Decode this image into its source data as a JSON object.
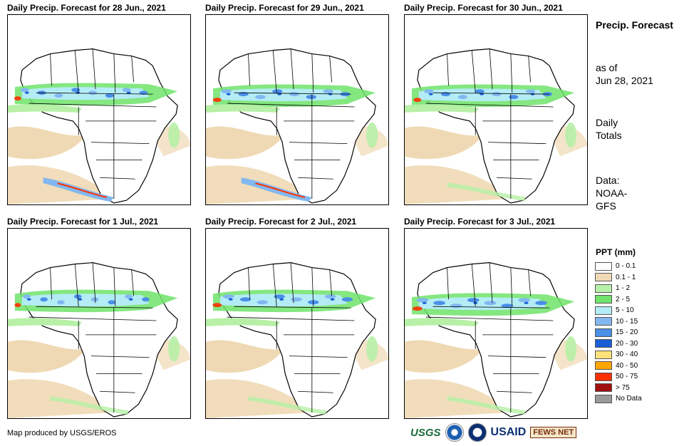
{
  "panels": [
    {
      "title": "Daily Precip. Forecast for 28 Jun., 2021"
    },
    {
      "title": "Daily Precip. Forecast for 29 Jun., 2021"
    },
    {
      "title": "Daily Precip. Forecast for 30 Jun., 2021"
    },
    {
      "title": "Daily Precip. Forecast for 1 Jul., 2021"
    },
    {
      "title": "Daily Precip. Forecast for 2 Jul., 2021"
    },
    {
      "title": "Daily Precip. Forecast for 3 Jul., 2021"
    }
  ],
  "side": {
    "title": "Precip. Forecast",
    "as_of_label": "as of",
    "as_of_date": "Jun 28, 2021",
    "totals_line1": "Daily",
    "totals_line2": "Totals",
    "data_line1": "Data:",
    "data_line2": "NOAA-",
    "data_line3": "GFS"
  },
  "legend": {
    "title": "PPT (mm)",
    "items": [
      {
        "label": "0 - 0.1",
        "color": "#ffffff"
      },
      {
        "label": "0.1 - 1",
        "color": "#efd9b4"
      },
      {
        "label": "1 - 2",
        "color": "#b7f0a6"
      },
      {
        "label": "2 - 5",
        "color": "#6fe36a"
      },
      {
        "label": "5 - 10",
        "color": "#b4ecf5"
      },
      {
        "label": "10 - 15",
        "color": "#82b8ef"
      },
      {
        "label": "15 - 20",
        "color": "#4a8fe8"
      },
      {
        "label": "20 - 30",
        "color": "#1a5fd6"
      },
      {
        "label": "30 - 40",
        "color": "#ffe27a"
      },
      {
        "label": "40 - 50",
        "color": "#ffa500"
      },
      {
        "label": "50 - 75",
        "color": "#ff3000"
      },
      {
        "label": "> 75",
        "color": "#a01010"
      },
      {
        "label": "No Data",
        "color": "#9a9a9a"
      }
    ]
  },
  "footer": {
    "note": "Map produced by USGS/EROS",
    "logo_usgs": "USGS",
    "logo_usaid": "USAID",
    "logo_fews": "FEWS NET"
  }
}
